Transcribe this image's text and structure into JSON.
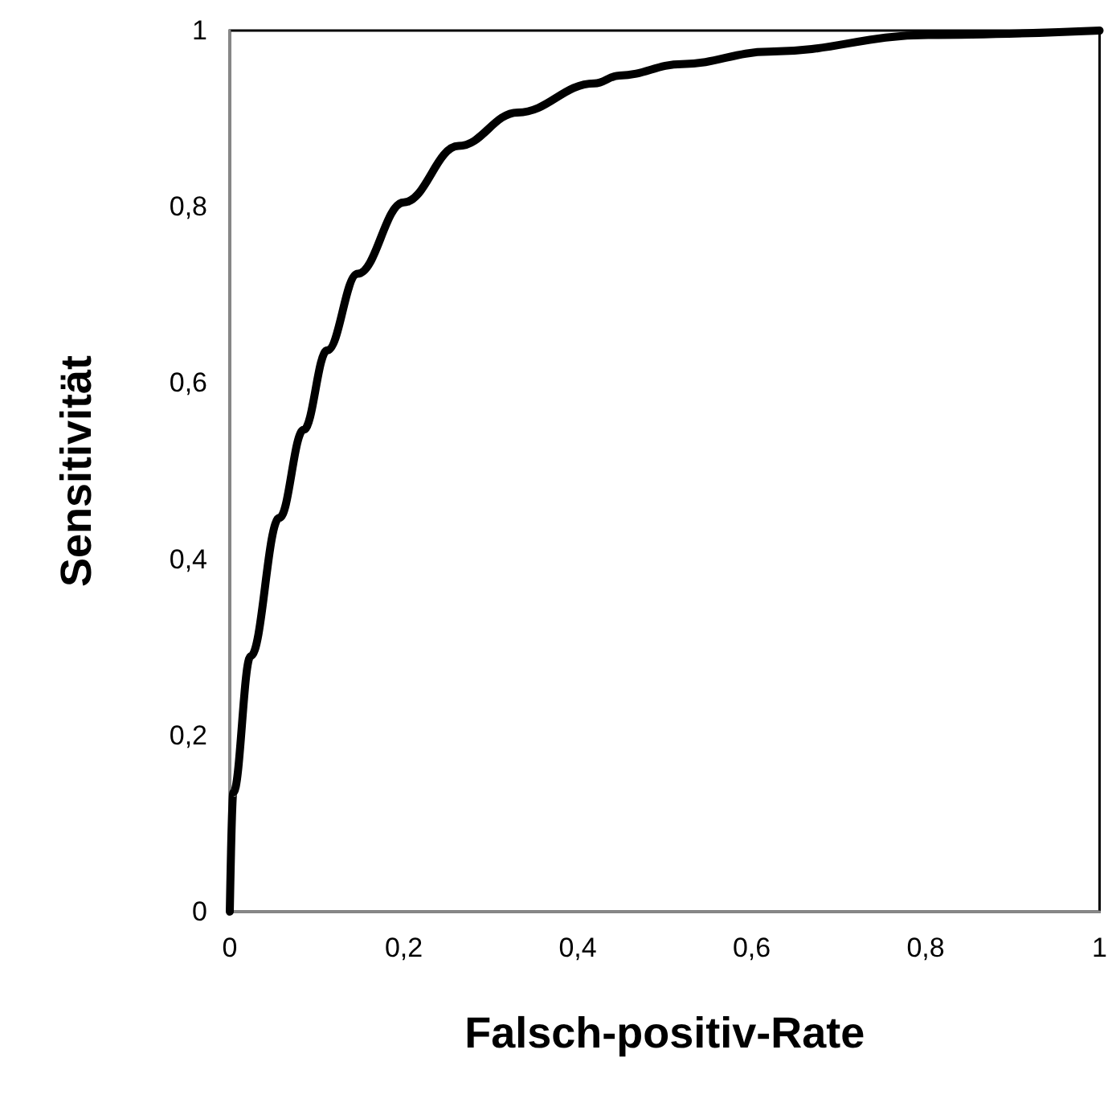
{
  "chart_data": {
    "type": "line",
    "xlabel": "Falsch-positiv-Rate",
    "ylabel": "Sensitivität",
    "x": [
      0,
      0.004,
      0.024,
      0.057,
      0.085,
      0.112,
      0.147,
      0.2,
      0.263,
      0.331,
      0.419,
      0.448,
      0.52,
      0.62,
      0.803,
      1
    ],
    "series": [
      {
        "color": "#000000",
        "values": [
          0,
          0.135,
          0.29,
          0.447,
          0.547,
          0.637,
          0.724,
          0.805,
          0.869,
          0.907,
          0.94,
          0.949,
          0.962,
          0.976,
          0.995,
          1
        ]
      }
    ],
    "xlim": [
      0,
      1
    ],
    "ylim": [
      0,
      1
    ],
    "xticks": [
      0,
      {
        "value": 0.2,
        "label": "0,2"
      },
      {
        "value": 0.4,
        "label": "0,4"
      },
      {
        "value": 0.6,
        "label": "0,6"
      },
      {
        "value": 0.8,
        "label": "0,8"
      },
      1
    ],
    "yticks": [
      0,
      {
        "value": 0.2,
        "label": "0,2"
      },
      {
        "value": 0.4,
        "label": "0,4"
      },
      {
        "value": 0.6,
        "label": "0,6"
      },
      {
        "value": 0.8,
        "label": "0,8"
      },
      1
    ],
    "grid": false,
    "marker": "none",
    "line_style": "solid"
  }
}
